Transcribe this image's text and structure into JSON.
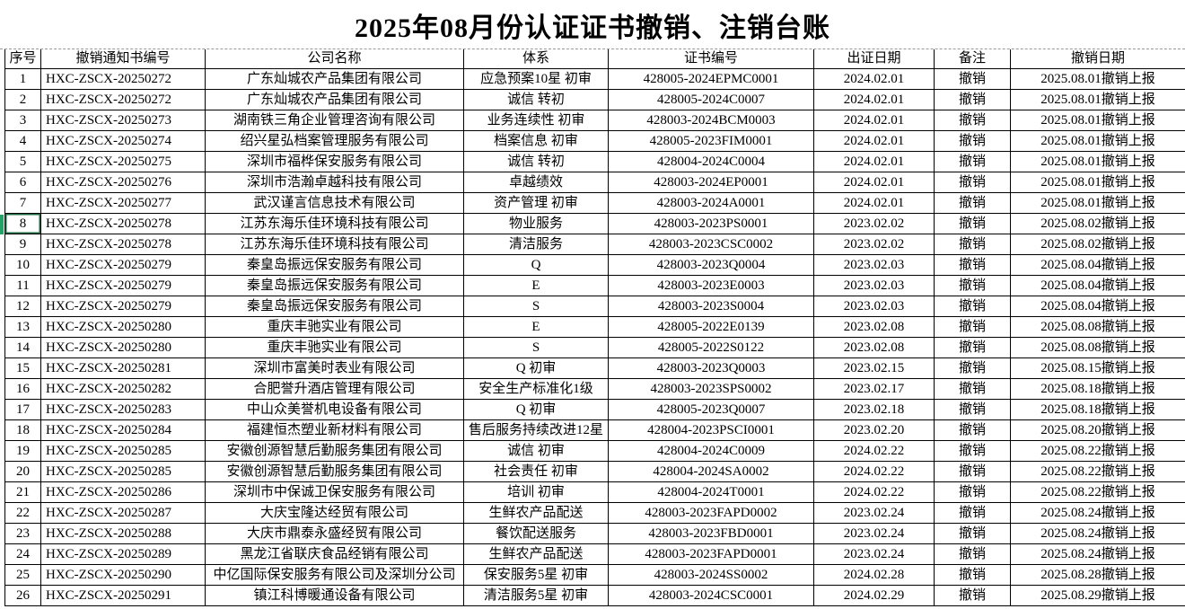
{
  "title": "2025年08月份认证证书撤销、注销台账",
  "colors": {
    "title_red": "#FF0000",
    "selection_green": "#21A366",
    "border_black": "#000000",
    "pagebreak_dash_gray": "#9A9A9A"
  },
  "selection": {
    "selected_row_number": "8",
    "selected_column": "序号"
  },
  "table": {
    "headers": [
      "序号",
      "撤销通知书编号",
      "公司名称",
      "体系",
      "证书编号",
      "出证日期",
      "备注",
      "撤销日期"
    ],
    "rows": [
      [
        "1",
        "HXC-ZSCX-20250272",
        "广东灿城农产品集团有限公司",
        "应急预案10星  初审",
        "428005-2024EPMC0001",
        "2024.02.01",
        "撤销",
        "2025.08.01撤销上报"
      ],
      [
        "2",
        "HXC-ZSCX-20250272",
        "广东灿城农产品集团有限公司",
        "诚信  转初",
        "428005-2024C0007",
        "2024.02.01",
        "撤销",
        "2025.08.01撤销上报"
      ],
      [
        "3",
        "HXC-ZSCX-20250273",
        "湖南铁三角企业管理咨询有限公司",
        "业务连续性  初审",
        "428003-2024BCM0003",
        "2024.02.01",
        "撤销",
        "2025.08.01撤销上报"
      ],
      [
        "4",
        "HXC-ZSCX-20250274",
        "绍兴星弘档案管理服务有限公司",
        "档案信息  初审",
        "428005-2023FIM0001",
        "2024.02.01",
        "撤销",
        "2025.08.01撤销上报"
      ],
      [
        "5",
        "HXC-ZSCX-20250275",
        "深圳市福桦保安服务有限公司",
        "诚信  转初",
        "428004-2024C0004",
        "2024.02.01",
        "撤销",
        "2025.08.01撤销上报"
      ],
      [
        "6",
        "HXC-ZSCX-20250276",
        "深圳市浩瀚卓越科技有限公司",
        "卓越绩效",
        "428003-2024EP0001",
        "2024.02.01",
        "撤销",
        "2025.08.01撤销上报"
      ],
      [
        "7",
        "HXC-ZSCX-20250277",
        "武汉谨言信息技术有限公司",
        "资产管理  初审",
        "428003-2024A0001",
        "2024.02.01",
        "撤销",
        "2025.08.01撤销上报"
      ],
      [
        "8",
        "HXC-ZSCX-20250278",
        "江苏东海乐佳环境科技有限公司",
        "物业服务",
        "428003-2023PS0001",
        "2023.02.02",
        "撤销",
        "2025.08.02撤销上报"
      ],
      [
        "9",
        "HXC-ZSCX-20250278",
        "江苏东海乐佳环境科技有限公司",
        "清洁服务",
        "428003-2023CSC0002",
        "2023.02.02",
        "撤销",
        "2025.08.02撤销上报"
      ],
      [
        "10",
        "HXC-ZSCX-20250279",
        "秦皇岛振远保安服务有限公司",
        "Q",
        "428003-2023Q0004",
        "2023.02.03",
        "撤销",
        "2025.08.04撤销上报"
      ],
      [
        "11",
        "HXC-ZSCX-20250279",
        "秦皇岛振远保安服务有限公司",
        "E",
        "428003-2023E0003",
        "2023.02.03",
        "撤销",
        "2025.08.04撤销上报"
      ],
      [
        "12",
        "HXC-ZSCX-20250279",
        "秦皇岛振远保安服务有限公司",
        "S",
        "428003-2023S0004",
        "2023.02.03",
        "撤销",
        "2025.08.04撤销上报"
      ],
      [
        "13",
        "HXC-ZSCX-20250280",
        "重庆丰驰实业有限公司",
        "E",
        "428005-2022E0139",
        "2023.02.08",
        "撤销",
        "2025.08.08撤销上报"
      ],
      [
        "14",
        "HXC-ZSCX-20250280",
        "重庆丰驰实业有限公司",
        "S",
        "428005-2022S0122",
        "2023.02.08",
        "撤销",
        "2025.08.08撤销上报"
      ],
      [
        "15",
        "HXC-ZSCX-20250281",
        "深圳市富美时表业有限公司",
        "Q  初审",
        "428003-2023Q0003",
        "2023.02.15",
        "撤销",
        "2025.08.15撤销上报"
      ],
      [
        "16",
        "HXC-ZSCX-20250282",
        "合肥誉升酒店管理有限公司",
        "安全生产标准化1级",
        "428003-2023SPS0002",
        "2023.02.17",
        "撤销",
        "2025.08.18撤销上报"
      ],
      [
        "17",
        "HXC-ZSCX-20250283",
        "中山众美誉机电设备有限公司",
        "Q  初审",
        "428005-2023Q0007",
        "2023.02.18",
        "撤销",
        "2025.08.18撤销上报"
      ],
      [
        "18",
        "HXC-ZSCX-20250284",
        "福建恒杰塑业新材料有限公司",
        "售后服务持续改进12星",
        "428004-2023PSCI0001",
        "2023.02.20",
        "撤销",
        "2025.08.20撤销上报"
      ],
      [
        "19",
        "HXC-ZSCX-20250285",
        "安徽创源智慧后勤服务集团有限公司",
        "诚信  初审",
        "428004-2024C0009",
        "2024.02.22",
        "撤销",
        "2025.08.22撤销上报"
      ],
      [
        "20",
        "HXC-ZSCX-20250285",
        "安徽创源智慧后勤服务集团有限公司",
        "社会责任  初审",
        "428004-2024SA0002",
        "2024.02.22",
        "撤销",
        "2025.08.22撤销上报"
      ],
      [
        "21",
        "HXC-ZSCX-20250286",
        "深圳市中保诚卫保安服务有限公司",
        "培训  初审",
        "428004-2024T0001",
        "2024.02.22",
        "撤销",
        "2025.08.22撤销上报"
      ],
      [
        "22",
        "HXC-ZSCX-20250287",
        "大庆宝隆达经贸有限公司",
        "生鲜农产品配送",
        "428003-2023FAPD0002",
        "2023.02.24",
        "撤销",
        "2025.08.24撤销上报"
      ],
      [
        "23",
        "HXC-ZSCX-20250288",
        "大庆市鼎泰永盛经贸有限公司",
        "餐饮配送服务",
        "428003-2023FBD0001",
        "2023.02.24",
        "撤销",
        "2025.08.24撤销上报"
      ],
      [
        "24",
        "HXC-ZSCX-20250289",
        "黑龙江省联庆食品经销有限公司",
        "生鲜农产品配送",
        "428003-2023FAPD0001",
        "2023.02.24",
        "撤销",
        "2025.08.24撤销上报"
      ],
      [
        "25",
        "HXC-ZSCX-20250290",
        "中亿国际保安服务有限公司及深圳分公司",
        "保安服务5星  初审",
        "428003-2024SS0002",
        "2024.02.28",
        "撤销",
        "2025.08.28撤销上报"
      ],
      [
        "26",
        "HXC-ZSCX-20250291",
        "镇江科博暖通设备有限公司",
        "清洁服务5星  初审",
        "428003-2024CSC0001",
        "2024.02.29",
        "撤销",
        "2025.08.29撤销上报"
      ]
    ]
  }
}
